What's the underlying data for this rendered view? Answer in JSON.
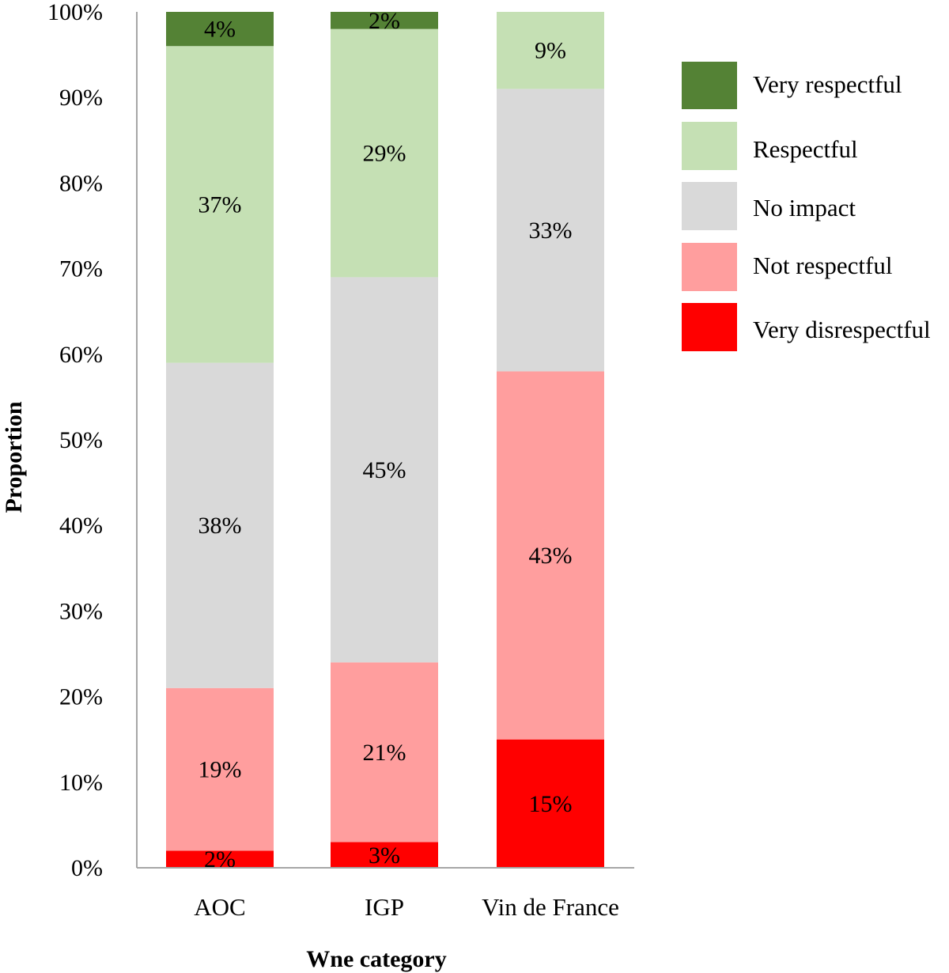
{
  "chart_data": {
    "type": "bar",
    "stacked": true,
    "categories": [
      "AOC",
      "IGP",
      "Vin de France"
    ],
    "series": [
      {
        "name": "Very disrespectful",
        "color": "#ff0000",
        "values": [
          2,
          3,
          15
        ],
        "labels": [
          "2%",
          "3%",
          "15%"
        ]
      },
      {
        "name": "Not respectful",
        "color": "#ff9e9e",
        "values": [
          19,
          21,
          43
        ],
        "labels": [
          "19%",
          "21%",
          "43%"
        ]
      },
      {
        "name": "No impact",
        "color": "#d9d9d9",
        "values": [
          38,
          45,
          33
        ],
        "labels": [
          "38%",
          "45%",
          "33%"
        ]
      },
      {
        "name": "Respectful",
        "color": "#c5e0b4",
        "values": [
          37,
          29,
          9
        ],
        "labels": [
          "37%",
          "29%",
          "9%"
        ]
      },
      {
        "name": "Very respectful",
        "color": "#548235",
        "values": [
          4,
          2,
          0
        ],
        "labels": [
          "4%",
          "2%",
          ""
        ]
      }
    ],
    "legend_order": [
      "Very respectful",
      "Respectful",
      "No impact",
      "Not respectful",
      "Very disrespectful"
    ],
    "xlabel": "Wne category",
    "ylabel": "Proportion",
    "ylim": [
      0,
      100
    ],
    "yticks": [
      "0%",
      "10%",
      "20%",
      "30%",
      "40%",
      "50%",
      "60%",
      "70%",
      "80%",
      "90%",
      "100%"
    ],
    "grid": false,
    "legend_position": "right"
  }
}
